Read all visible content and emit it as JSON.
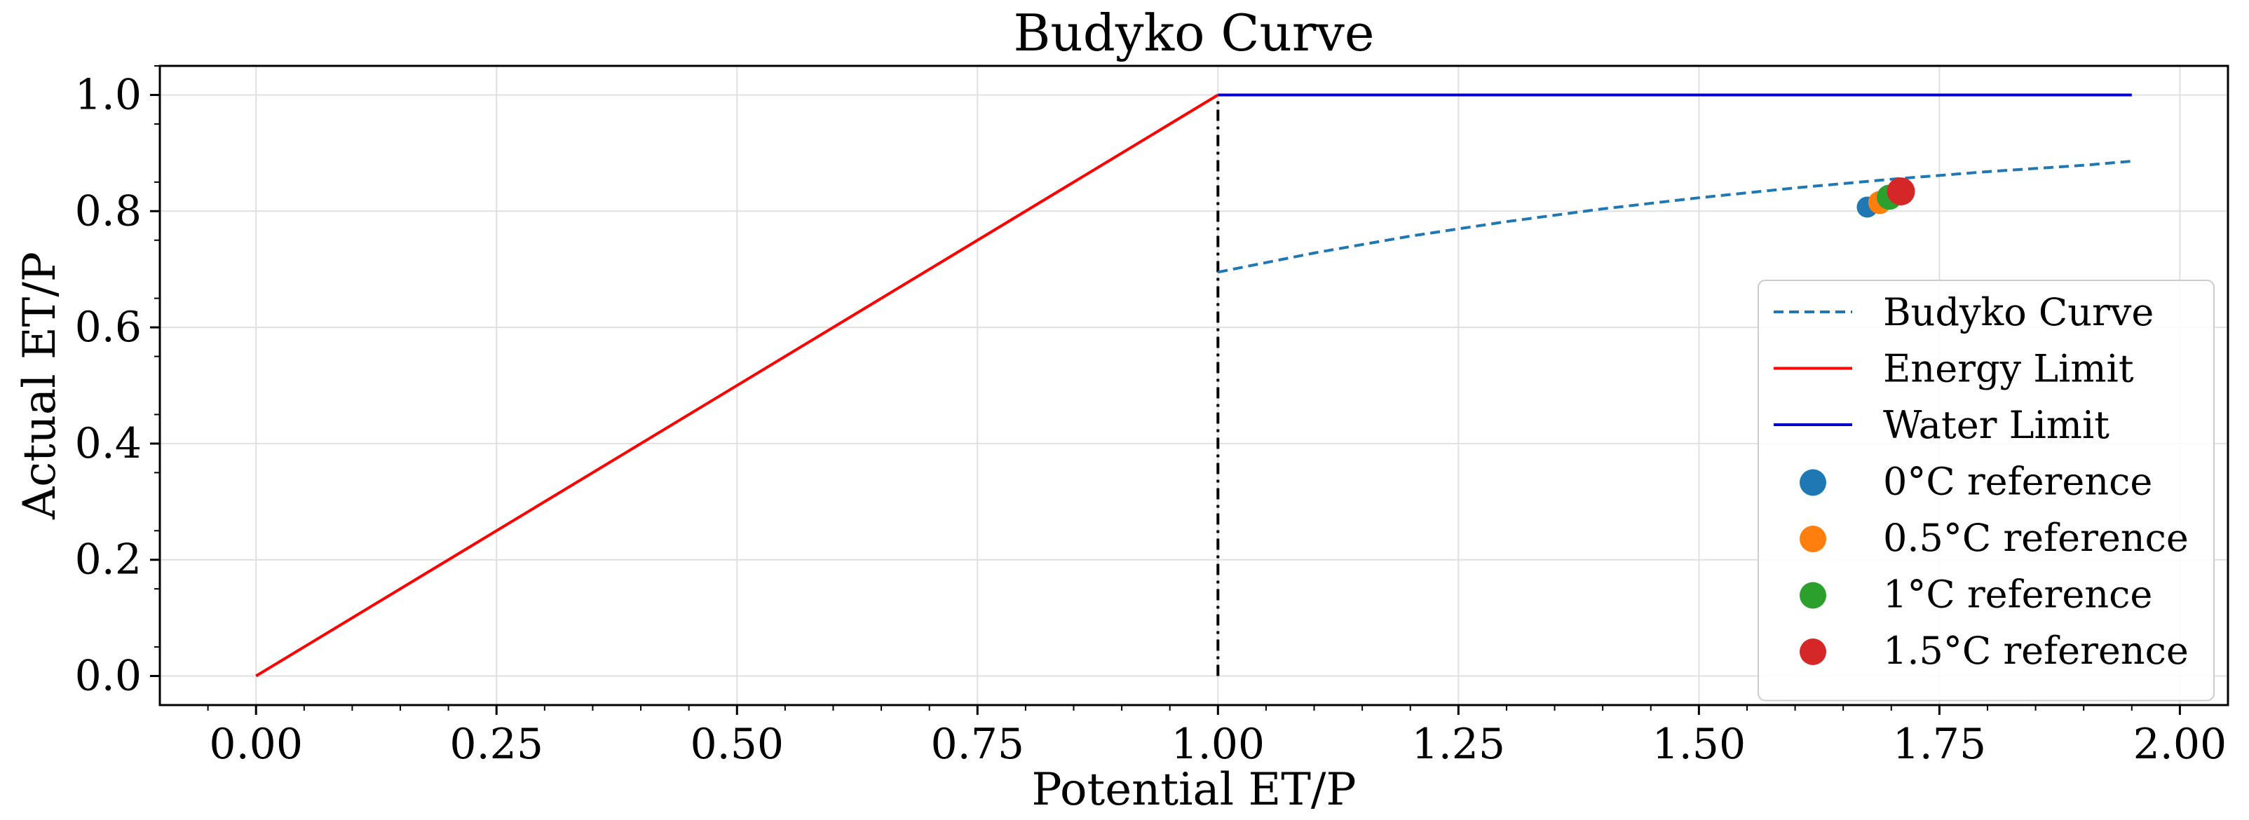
{
  "chart_data": {
    "type": "line",
    "title": "Budyko Curve",
    "xlabel": "Potential ET/P",
    "ylabel": "Actual ET/P",
    "xlim": [
      -0.1,
      2.05
    ],
    "ylim": [
      -0.05,
      1.05
    ],
    "xticks": [
      0.0,
      0.25,
      0.5,
      0.75,
      1.0,
      1.25,
      1.5,
      1.75,
      2.0
    ],
    "xtick_labels": [
      "0.00",
      "0.25",
      "0.50",
      "0.75",
      "1.00",
      "1.25",
      "1.50",
      "1.75",
      "2.00"
    ],
    "yticks": [
      0.0,
      0.2,
      0.4,
      0.6,
      0.8,
      1.0
    ],
    "ytick_labels": [
      "0.0",
      "0.2",
      "0.4",
      "0.6",
      "0.8",
      "1.0"
    ],
    "grid": true,
    "legend_position": "right",
    "vline": {
      "x": 1.0,
      "ymin": 0.0,
      "ymax": 1.0,
      "color": "#000000",
      "style": "dash-dot"
    },
    "series": [
      {
        "name": "Budyko Curve",
        "kind": "line",
        "style": "dashed",
        "color": "#1f77b4",
        "x": [
          1.0,
          1.1,
          1.2,
          1.3,
          1.4,
          1.5,
          1.6,
          1.7,
          1.8,
          1.9,
          1.95
        ],
        "y": [
          0.695,
          0.728,
          0.757,
          0.782,
          0.804,
          0.823,
          0.84,
          0.855,
          0.868,
          0.879,
          0.886
        ]
      },
      {
        "name": "Energy Limit",
        "kind": "line",
        "style": "solid",
        "color": "#ff0000",
        "x": [
          0.0,
          1.0
        ],
        "y": [
          0.0,
          1.0
        ]
      },
      {
        "name": "Water Limit",
        "kind": "line",
        "style": "solid",
        "color": "#0000cc",
        "x": [
          1.0,
          1.95
        ],
        "y": [
          1.0,
          1.0
        ]
      },
      {
        "name": "0°C reference",
        "kind": "scatter",
        "color": "#1f77b4",
        "size": 15,
        "x": [
          1.675
        ],
        "y": [
          0.807
        ]
      },
      {
        "name": "0.5°C reference",
        "kind": "scatter",
        "color": "#ff7f0e",
        "size": 16.5,
        "x": [
          1.688
        ],
        "y": [
          0.815
        ]
      },
      {
        "name": "1°C reference",
        "kind": "scatter",
        "color": "#2ca02c",
        "size": 18,
        "x": [
          1.698
        ],
        "y": [
          0.824
        ]
      },
      {
        "name": "1.5°C reference",
        "kind": "scatter",
        "color": "#d62728",
        "size": 20,
        "x": [
          1.71
        ],
        "y": [
          0.834
        ]
      }
    ]
  }
}
